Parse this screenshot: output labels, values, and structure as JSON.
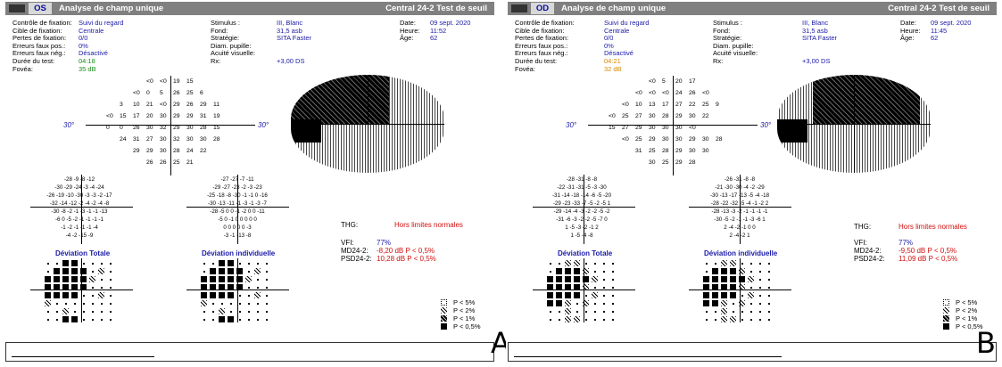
{
  "panels": [
    {
      "id": "A",
      "header": {
        "eye": "OS",
        "title": "Analyse de champ unique",
        "test": "Central 24-2 Test de seuil"
      },
      "left_info": {
        "labels": [
          "Contrôle de fixation:",
          "Cible de fixation:",
          "Pertes de fixation:",
          "Erreurs faux pos.:",
          "Erreurs faux nég.:",
          "Durée du test:",
          "Fovéa:"
        ],
        "values": [
          "Suivi du regard",
          "Centrale",
          "0/0",
          "0%",
          "Désactivé",
          "04:18",
          "35 dB"
        ]
      },
      "mid_info": {
        "labels": [
          "Stimulus :",
          "Fond:",
          "Stratégie:",
          "Diam. pupille:",
          "Acuité visuelle:",
          "Rx:"
        ],
        "values": [
          "III, Blanc",
          "31,5 asb",
          "SITA Faster",
          "",
          "",
          "+3,00 DS"
        ]
      },
      "right_info": {
        "labels": [
          "Date:",
          "Heure:",
          "Âge:"
        ],
        "values": [
          "09 sept. 2020",
          "11:52",
          "62"
        ]
      },
      "threshold_rows": [
        [
          "<0",
          "<0",
          "19",
          "15"
        ],
        [
          "<0",
          "0",
          "5",
          "26",
          "25",
          "6"
        ],
        [
          "3",
          "10",
          "21",
          "<0",
          "29",
          "26",
          "29",
          "11"
        ],
        [
          "<0",
          "15",
          "17",
          "20",
          "30",
          "29",
          "29",
          "31",
          "19"
        ],
        [
          "0",
          "0",
          "26",
          "30",
          "32",
          "29",
          "30",
          "28",
          "15"
        ],
        [
          "24",
          "31",
          "27",
          "30",
          "32",
          "30",
          "30",
          "28"
        ],
        [
          "29",
          "29",
          "30",
          "28",
          "24",
          "22"
        ],
        [
          "26",
          "26",
          "25",
          "21"
        ]
      ],
      "degree_label": "30°",
      "total_dev_rows": [
        "-28 -9 -8 -12",
        "-30 -29 -24 -3 -4 -24",
        "-26 -19 -10 -30 -3 -3 -2 -17",
        "-32 -14 -12 -2 -4 -2 -4 -8",
        "-30 -8 -2 -1 -3 -1 -1 -13",
        "-6 0 -5 -2 -1 -1 -1 -1",
        "-1 -2 -1 -1 -1 -4",
        "-4 -2 -15 -9"
      ],
      "pattern_dev_rows": [
        "-27 -27 -7 -11",
        "-29 -27 -23 -2 -3 -23",
        "-25 -18 -8 -30 -1 -1 0 -16",
        "-30 -13 -11 -1 -3 -1 -3 -7",
        "-28 -5 0 0 -1 -2 0 0 -11",
        "-5 0 -1 0 0 0 0 0",
        "0 0 0 0 0 -3",
        "-3 -1 -13 -8"
      ],
      "total_dev_label": "Déviation Totale",
      "pattern_dev_label": "Déviation individuelle",
      "ght_label": "THG:",
      "ght_value": "Hors limites normales",
      "vfi_label": "VFI:",
      "vfi_value": "77%",
      "md_label": "MD24-2:",
      "md_value": "-8,20 dB P < 0,5%",
      "psd_label": "PSD24-2:",
      "psd_value": "10,28 dB P < 0,5%",
      "legend": [
        "P < 5%",
        "P < 2%",
        "P < 1%",
        "P < 0,5%"
      ],
      "corner_label": "A"
    },
    {
      "id": "B",
      "header": {
        "eye": "OD",
        "title": "Analyse de champ unique",
        "test": "Central 24-2 Test de seuil"
      },
      "left_info": {
        "labels": [
          "Contrôle de fixation:",
          "Cible de fixation:",
          "Pertes de fixation:",
          "Erreurs faux pos.:",
          "Erreurs faux nég.:",
          "Durée du test:",
          "Fovéa:"
        ],
        "values": [
          "Suivi du regard",
          "Centrale",
          "0/0",
          "0%",
          "Désactivé",
          "04:21",
          "32 dB"
        ]
      },
      "mid_info": {
        "labels": [
          "Stimulus :",
          "Fond:",
          "Stratégie:",
          "Diam. pupille:",
          "Acuité visuelle:",
          "Rx:"
        ],
        "values": [
          "III, Blanc",
          "31,5 asb",
          "SITA Faster",
          "",
          "",
          "+3,00 DS"
        ]
      },
      "right_info": {
        "labels": [
          "Date:",
          "Heure:",
          "Âge:"
        ],
        "values": [
          "09 sept. 2020",
          "11:45",
          "62"
        ]
      },
      "threshold_rows": [
        [
          "<0",
          "5",
          "20",
          "17"
        ],
        [
          "<0",
          "<0",
          "<0",
          "24",
          "26",
          "<0"
        ],
        [
          "<0",
          "10",
          "13",
          "17",
          "27",
          "22",
          "25",
          "9"
        ],
        [
          "<0",
          "25",
          "27",
          "30",
          "28",
          "29",
          "30",
          "22"
        ],
        [
          "15",
          "27",
          "29",
          "30",
          "30",
          "30",
          "<0"
        ],
        [
          "<0",
          "25",
          "29",
          "30",
          "30",
          "29",
          "30",
          "28"
        ],
        [
          "31",
          "25",
          "28",
          "29",
          "30",
          "30"
        ],
        [
          "30",
          "25",
          "29",
          "28"
        ]
      ],
      "degree_label": "30°",
      "total_dev_rows": [
        "-28 -31 -8 -8",
        "-22 -31 -31 -5 -3 -30",
        "-31 -14 -18 -14 -6 -5 -20",
        "-29 -23 -33 -7 -5 -2 -5 1",
        "-29 -14 -4 -3 -2 -2 -5 -2",
        "-31 -6 -3 -2 -2 -5 -7 0",
        "1 -5 -3 -2 -1 2",
        "1 -5 -4 -8"
      ],
      "pattern_dev_rows": [
        "-26 -31 -8 -8",
        "-21 -30 -30 -4 -2 -29",
        "-30 -13 -17 -13 -5 -4 -18",
        "-28 -22 -32 -5 -4 -1 -2 2",
        "-28 -13 -3 -2 -1 -1 -1 -1",
        "-30 -5 -2 -1 -1 -3 -6 1",
        "2 -4 -2 -1 0 0",
        "2 -4 -2 1"
      ],
      "total_dev_label": "Déviation Totale",
      "pattern_dev_label": "Déviation individuelle",
      "ght_label": "THG:",
      "ght_value": "Hors limites normales",
      "vfi_label": "VFI:",
      "vfi_value": "77%",
      "md_label": "MD24-2:",
      "md_value": "-9,50 dB P < 0,5%",
      "psd_label": "PSD24-2:",
      "psd_value": "11,09 dB P < 0,5%",
      "legend": [
        "P < 5%",
        "P < 2%",
        "P < 1%",
        "P < 0,5%"
      ],
      "corner_label": "B"
    }
  ]
}
